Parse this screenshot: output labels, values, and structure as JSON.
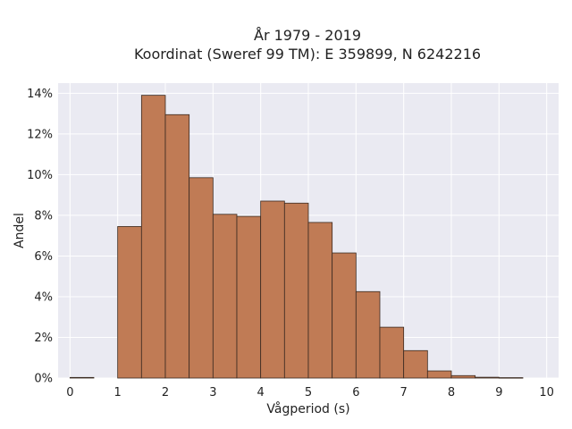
{
  "chart_data": {
    "type": "bar",
    "title": "År 1979 - 2019",
    "subtitle": "Koordinat (Sweref 99 TM): E 359899, N 6242216",
    "xlabel": "Vågperiod (s)",
    "ylabel": "Andel",
    "xlim": [
      -0.25,
      10.25
    ],
    "ylim": [
      0,
      14.5
    ],
    "x_ticks": [
      0,
      1,
      2,
      3,
      4,
      5,
      6,
      7,
      8,
      9,
      10
    ],
    "y_ticks": [
      0,
      2,
      4,
      6,
      8,
      10,
      12,
      14
    ],
    "y_tick_labels": [
      "0%",
      "2%",
      "4%",
      "6%",
      "8%",
      "10%",
      "12%",
      "14%"
    ],
    "bin_width": 0.5,
    "bin_starts": [
      0.0,
      0.5,
      1.0,
      1.5,
      2.0,
      2.5,
      3.0,
      3.5,
      4.0,
      4.5,
      5.0,
      5.5,
      6.0,
      6.5,
      7.0,
      7.5,
      8.0,
      8.5,
      9.0,
      9.5
    ],
    "values": [
      0.03,
      0.0,
      7.45,
      13.9,
      12.95,
      9.85,
      8.05,
      7.95,
      8.7,
      8.6,
      7.65,
      6.15,
      4.25,
      2.5,
      1.35,
      0.35,
      0.12,
      0.04,
      0.02,
      0.0
    ],
    "grid": true,
    "bar_color": "#c07b55",
    "bar_edge_color": "#3a2a20",
    "background_color": "#eaeaf2",
    "grid_color": "#ffffff"
  }
}
